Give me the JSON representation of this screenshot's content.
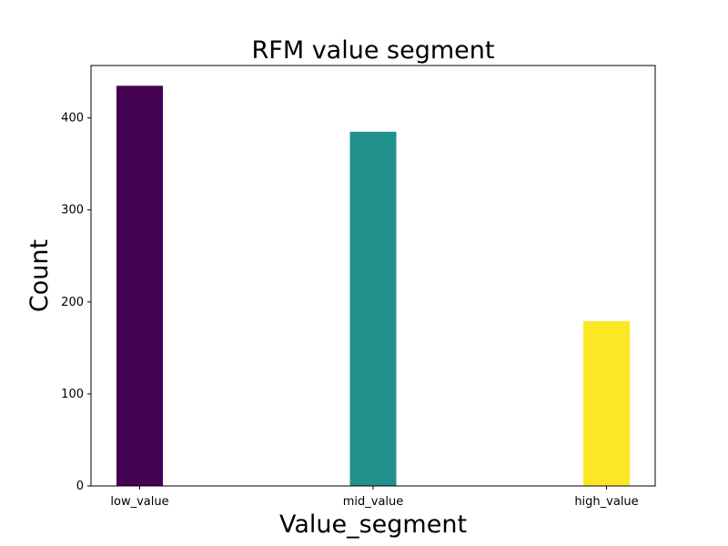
{
  "chart_data": {
    "type": "bar",
    "title": "RFM value segment",
    "xlabel": "Value_segment",
    "ylabel": "Count",
    "categories": [
      "low_value",
      "mid_value",
      "high_value"
    ],
    "values": [
      435,
      385,
      179
    ],
    "colors": [
      "#440154",
      "#21918c",
      "#fde725"
    ],
    "ylim": [
      0,
      457
    ],
    "yticks": [
      0,
      100,
      200,
      300,
      400
    ],
    "grid": false,
    "legend": "none"
  }
}
